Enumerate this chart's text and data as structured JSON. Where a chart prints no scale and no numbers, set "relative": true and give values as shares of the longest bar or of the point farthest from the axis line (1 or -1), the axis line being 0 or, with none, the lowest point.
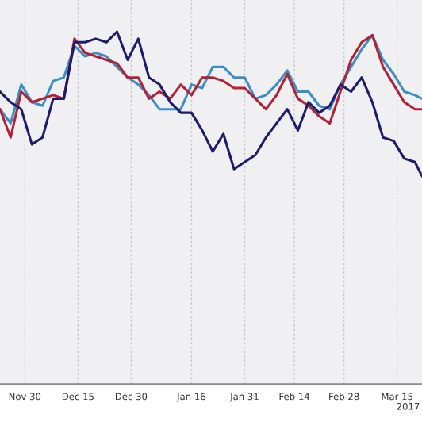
{
  "chart_data": {
    "type": "line",
    "relative": true,
    "grid": "x",
    "legend": false,
    "x": [
      "2016-11-23",
      "2016-11-26",
      "2016-11-29",
      "2016-12-02",
      "2016-12-05",
      "2016-12-08",
      "2016-12-11",
      "2016-12-14",
      "2016-12-17",
      "2016-12-20",
      "2016-12-23",
      "2016-12-26",
      "2016-12-29",
      "2017-01-01",
      "2017-01-04",
      "2017-01-07",
      "2017-01-10",
      "2017-01-13",
      "2017-01-16",
      "2017-01-19",
      "2017-01-22",
      "2017-01-25",
      "2017-01-28",
      "2017-01-31",
      "2017-02-03",
      "2017-02-06",
      "2017-02-09",
      "2017-02-12",
      "2017-02-15",
      "2017-02-18",
      "2017-02-21",
      "2017-02-24",
      "2017-02-27",
      "2017-03-02",
      "2017-03-05",
      "2017-03-08",
      "2017-03-11",
      "2017-03-14",
      "2017-03-17",
      "2017-03-20",
      "2017-03-22"
    ],
    "xlim": [
      "2016-11-23",
      "2017-03-22"
    ],
    "xticks": [
      {
        "value": "2016-11-30",
        "label": "Nov 30"
      },
      {
        "value": "2016-12-15",
        "label": "Dec 15"
      },
      {
        "value": "2016-12-30",
        "label": "Dec 30"
      },
      {
        "value": "2017-01-16",
        "label": "Jan 16"
      },
      {
        "value": "2017-01-31",
        "label": "Jan 31"
      },
      {
        "value": "2017-02-14",
        "label": "Feb 14"
      },
      {
        "value": "2017-02-28",
        "label": "Feb 28"
      },
      {
        "value": "2017-03-15",
        "label": "Mar 15"
      }
    ],
    "annotations": [
      "2017"
    ],
    "series": [
      {
        "color": "#3a8fc8",
        "values": [
          0.78,
          0.74,
          0.85,
          0.8,
          0.79,
          0.86,
          0.87,
          0.96,
          0.93,
          0.94,
          0.93,
          0.9,
          0.87,
          0.85,
          0.82,
          0.78,
          0.78,
          0.78,
          0.85,
          0.84,
          0.9,
          0.9,
          0.87,
          0.87,
          0.81,
          0.82,
          0.85,
          0.89,
          0.83,
          0.83,
          0.79,
          0.78,
          0.85,
          0.9,
          0.95,
          0.99,
          0.92,
          0.88,
          0.83,
          0.82,
          0.81
        ]
      },
      {
        "color": "#b22234",
        "values": [
          0.78,
          0.7,
          0.83,
          0.8,
          0.81,
          0.82,
          0.81,
          0.98,
          0.94,
          0.93,
          0.92,
          0.91,
          0.87,
          0.87,
          0.81,
          0.83,
          0.81,
          0.85,
          0.82,
          0.87,
          0.87,
          0.86,
          0.84,
          0.84,
          0.81,
          0.78,
          0.82,
          0.88,
          0.81,
          0.79,
          0.76,
          0.74,
          0.83,
          0.92,
          0.97,
          0.99,
          0.9,
          0.85,
          0.8,
          0.78,
          0.78
        ]
      },
      {
        "color": "#1c1c6e",
        "values": [
          0.83,
          0.8,
          0.78,
          0.68,
          0.7,
          0.81,
          0.81,
          0.97,
          0.97,
          0.98,
          0.97,
          1.0,
          0.92,
          0.98,
          0.87,
          0.85,
          0.8,
          0.77,
          0.77,
          0.72,
          0.66,
          0.71,
          0.61,
          0.63,
          0.65,
          0.7,
          0.74,
          0.78,
          0.72,
          0.8,
          0.77,
          0.79,
          0.85,
          0.83,
          0.87,
          0.8,
          0.7,
          0.69,
          0.64,
          0.63,
          0.59
        ]
      }
    ]
  }
}
